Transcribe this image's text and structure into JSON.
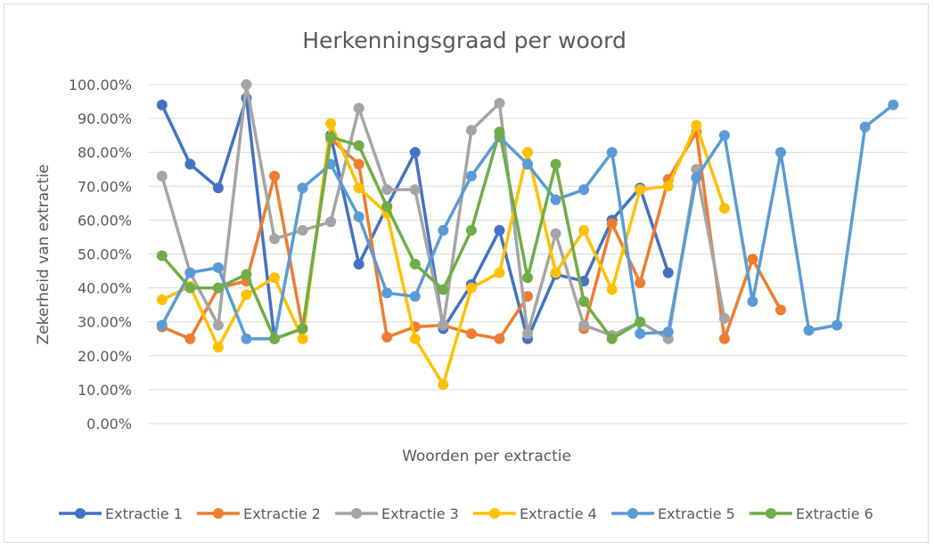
{
  "chart_data": {
    "type": "line",
    "title": "Herkenningsgraad per woord",
    "xlabel": "Woorden per extractie",
    "ylabel": "Zekerheid van extractie",
    "ylim": [
      0,
      1
    ],
    "y_ticks": [
      "0.00%",
      "10.00%",
      "20.00%",
      "30.00%",
      "40.00%",
      "50.00%",
      "60.00%",
      "70.00%",
      "80.00%",
      "90.00%",
      "100.00%"
    ],
    "grid": true,
    "legend_position": "bottom",
    "x_count": 27,
    "series": [
      {
        "name": "Extractie 1",
        "color": "#4472C4",
        "values": [
          0.94,
          0.765,
          0.695,
          0.96,
          0.25,
          0.28,
          0.85,
          0.47,
          0.64,
          0.8,
          0.28,
          0.41,
          0.57,
          0.25,
          0.44,
          0.42,
          0.6,
          0.695,
          0.445
        ]
      },
      {
        "name": "Extractie 2",
        "color": "#ED7D31",
        "values": [
          0.285,
          0.25,
          0.4,
          0.42,
          0.73,
          0.28,
          0.84,
          0.765,
          0.255,
          0.285,
          0.29,
          0.265,
          0.25,
          0.375,
          null,
          0.28,
          0.59,
          0.415,
          0.72,
          0.86,
          0.25,
          0.485,
          0.335
        ]
      },
      {
        "name": "Extractie 3",
        "color": "#A5A5A5",
        "values": [
          0.73,
          0.445,
          0.29,
          1.0,
          0.545,
          0.57,
          0.595,
          0.93,
          0.69,
          0.69,
          0.29,
          0.865,
          0.945,
          0.265,
          0.56,
          0.29,
          0.26,
          0.3,
          0.25,
          0.75,
          0.31
        ]
      },
      {
        "name": "Extractie 4",
        "color": "#FFC000",
        "values": [
          0.365,
          0.405,
          0.225,
          0.38,
          0.43,
          0.25,
          0.885,
          0.695,
          0.62,
          0.25,
          0.115,
          0.4,
          0.445,
          0.8,
          0.445,
          0.57,
          0.395,
          0.69,
          0.7,
          0.88,
          0.635
        ]
      },
      {
        "name": "Extractie 5",
        "color": "#5B9BD5",
        "values": [
          0.29,
          0.445,
          0.46,
          0.25,
          0.25,
          0.695,
          0.765,
          0.61,
          0.385,
          0.375,
          0.57,
          0.73,
          0.845,
          0.765,
          0.66,
          0.69,
          0.8,
          0.265,
          0.27,
          0.725,
          0.85,
          0.36,
          0.8,
          0.275,
          0.29,
          0.875,
          0.94
        ]
      },
      {
        "name": "Extractie 6",
        "color": "#70AD47",
        "values": [
          0.495,
          0.4,
          0.4,
          0.44,
          0.25,
          0.28,
          0.845,
          0.82,
          0.64,
          0.47,
          0.395,
          0.57,
          0.86,
          0.43,
          0.765,
          0.36,
          0.25,
          0.3
        ]
      }
    ]
  }
}
